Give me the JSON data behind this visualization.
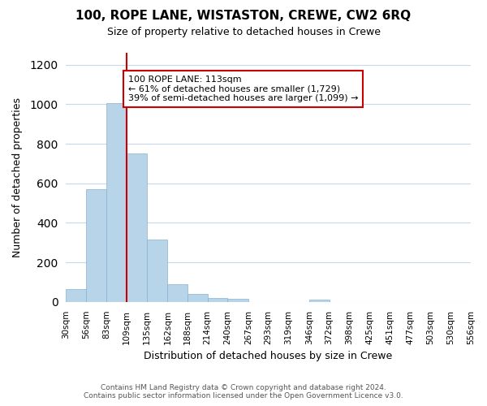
{
  "title": "100, ROPE LANE, WISTASTON, CREWE, CW2 6RQ",
  "subtitle": "Size of property relative to detached houses in Crewe",
  "xlabel": "Distribution of detached houses by size in Crewe",
  "ylabel": "Number of detached properties",
  "bar_color": "#b8d4e8",
  "bar_edge_color": "#8ab0d0",
  "vline_color": "#cc0000",
  "annotation_title": "100 ROPE LANE: 113sqm",
  "annotation_line1": "← 61% of detached houses are smaller (1,729)",
  "annotation_line2": "39% of semi-detached houses are larger (1,099) →",
  "annotation_box_color": "#ffffff",
  "annotation_box_edge": "#cc0000",
  "bins": [
    30,
    56,
    83,
    109,
    135,
    162,
    188,
    214,
    240,
    267,
    293,
    319,
    346,
    372,
    398,
    425,
    451,
    477,
    503,
    530,
    556
  ],
  "bin_labels": [
    "30sqm",
    "56sqm",
    "83sqm",
    "109sqm",
    "135sqm",
    "162sqm",
    "188sqm",
    "214sqm",
    "240sqm",
    "267sqm",
    "293sqm",
    "319sqm",
    "346sqm",
    "372sqm",
    "398sqm",
    "425sqm",
    "451sqm",
    "477sqm",
    "503sqm",
    "530sqm",
    "556sqm"
  ],
  "bar_heights": [
    65,
    570,
    1005,
    750,
    315,
    90,
    40,
    20,
    15,
    0,
    0,
    0,
    10,
    0,
    0,
    0,
    0,
    0,
    0,
    0
  ],
  "vline_bin_index": 3,
  "ylim": [
    0,
    1260
  ],
  "yticks": [
    0,
    200,
    400,
    600,
    800,
    1000,
    1200
  ],
  "footer_line1": "Contains HM Land Registry data © Crown copyright and database right 2024.",
  "footer_line2": "Contains public sector information licensed under the Open Government Licence v3.0.",
  "background_color": "#ffffff",
  "grid_color": "#c8d8e8"
}
